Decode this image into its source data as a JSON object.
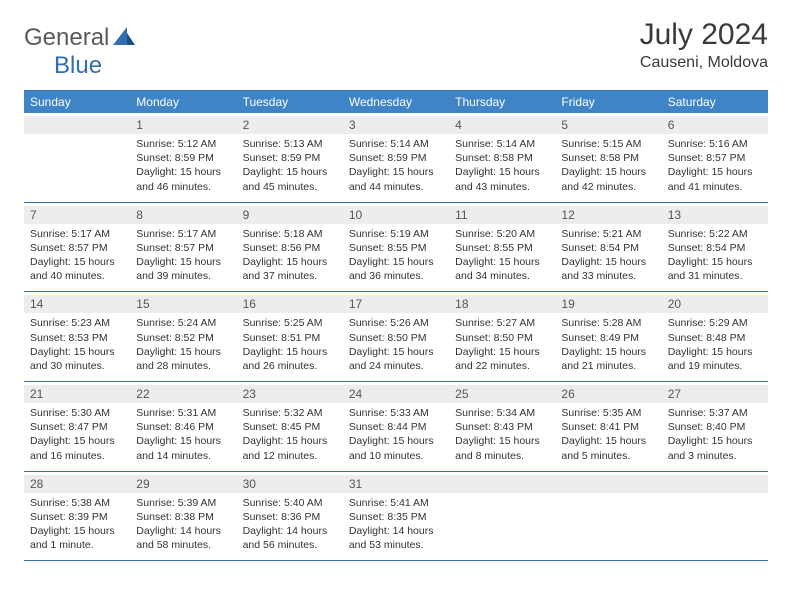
{
  "logo": {
    "part1": "General",
    "part2": "Blue"
  },
  "title": "July 2024",
  "location": "Causeni, Moldova",
  "colors": {
    "header_bg": "#3e84c6",
    "header_text": "#ffffff",
    "border": "#3b6fa8",
    "daynum_bg": "#ededed",
    "logo_gray": "#5a5a5a",
    "logo_blue": "#2f6fb0"
  },
  "day_names": [
    "Sunday",
    "Monday",
    "Tuesday",
    "Wednesday",
    "Thursday",
    "Friday",
    "Saturday"
  ],
  "weeks": [
    [
      {
        "num": "",
        "sunrise": "",
        "sunset": "",
        "daylight": ""
      },
      {
        "num": "1",
        "sunrise": "Sunrise: 5:12 AM",
        "sunset": "Sunset: 8:59 PM",
        "daylight": "Daylight: 15 hours and 46 minutes."
      },
      {
        "num": "2",
        "sunrise": "Sunrise: 5:13 AM",
        "sunset": "Sunset: 8:59 PM",
        "daylight": "Daylight: 15 hours and 45 minutes."
      },
      {
        "num": "3",
        "sunrise": "Sunrise: 5:14 AM",
        "sunset": "Sunset: 8:59 PM",
        "daylight": "Daylight: 15 hours and 44 minutes."
      },
      {
        "num": "4",
        "sunrise": "Sunrise: 5:14 AM",
        "sunset": "Sunset: 8:58 PM",
        "daylight": "Daylight: 15 hours and 43 minutes."
      },
      {
        "num": "5",
        "sunrise": "Sunrise: 5:15 AM",
        "sunset": "Sunset: 8:58 PM",
        "daylight": "Daylight: 15 hours and 42 minutes."
      },
      {
        "num": "6",
        "sunrise": "Sunrise: 5:16 AM",
        "sunset": "Sunset: 8:57 PM",
        "daylight": "Daylight: 15 hours and 41 minutes."
      }
    ],
    [
      {
        "num": "7",
        "sunrise": "Sunrise: 5:17 AM",
        "sunset": "Sunset: 8:57 PM",
        "daylight": "Daylight: 15 hours and 40 minutes."
      },
      {
        "num": "8",
        "sunrise": "Sunrise: 5:17 AM",
        "sunset": "Sunset: 8:57 PM",
        "daylight": "Daylight: 15 hours and 39 minutes."
      },
      {
        "num": "9",
        "sunrise": "Sunrise: 5:18 AM",
        "sunset": "Sunset: 8:56 PM",
        "daylight": "Daylight: 15 hours and 37 minutes."
      },
      {
        "num": "10",
        "sunrise": "Sunrise: 5:19 AM",
        "sunset": "Sunset: 8:55 PM",
        "daylight": "Daylight: 15 hours and 36 minutes."
      },
      {
        "num": "11",
        "sunrise": "Sunrise: 5:20 AM",
        "sunset": "Sunset: 8:55 PM",
        "daylight": "Daylight: 15 hours and 34 minutes."
      },
      {
        "num": "12",
        "sunrise": "Sunrise: 5:21 AM",
        "sunset": "Sunset: 8:54 PM",
        "daylight": "Daylight: 15 hours and 33 minutes."
      },
      {
        "num": "13",
        "sunrise": "Sunrise: 5:22 AM",
        "sunset": "Sunset: 8:54 PM",
        "daylight": "Daylight: 15 hours and 31 minutes."
      }
    ],
    [
      {
        "num": "14",
        "sunrise": "Sunrise: 5:23 AM",
        "sunset": "Sunset: 8:53 PM",
        "daylight": "Daylight: 15 hours and 30 minutes."
      },
      {
        "num": "15",
        "sunrise": "Sunrise: 5:24 AM",
        "sunset": "Sunset: 8:52 PM",
        "daylight": "Daylight: 15 hours and 28 minutes."
      },
      {
        "num": "16",
        "sunrise": "Sunrise: 5:25 AM",
        "sunset": "Sunset: 8:51 PM",
        "daylight": "Daylight: 15 hours and 26 minutes."
      },
      {
        "num": "17",
        "sunrise": "Sunrise: 5:26 AM",
        "sunset": "Sunset: 8:50 PM",
        "daylight": "Daylight: 15 hours and 24 minutes."
      },
      {
        "num": "18",
        "sunrise": "Sunrise: 5:27 AM",
        "sunset": "Sunset: 8:50 PM",
        "daylight": "Daylight: 15 hours and 22 minutes."
      },
      {
        "num": "19",
        "sunrise": "Sunrise: 5:28 AM",
        "sunset": "Sunset: 8:49 PM",
        "daylight": "Daylight: 15 hours and 21 minutes."
      },
      {
        "num": "20",
        "sunrise": "Sunrise: 5:29 AM",
        "sunset": "Sunset: 8:48 PM",
        "daylight": "Daylight: 15 hours and 19 minutes."
      }
    ],
    [
      {
        "num": "21",
        "sunrise": "Sunrise: 5:30 AM",
        "sunset": "Sunset: 8:47 PM",
        "daylight": "Daylight: 15 hours and 16 minutes."
      },
      {
        "num": "22",
        "sunrise": "Sunrise: 5:31 AM",
        "sunset": "Sunset: 8:46 PM",
        "daylight": "Daylight: 15 hours and 14 minutes."
      },
      {
        "num": "23",
        "sunrise": "Sunrise: 5:32 AM",
        "sunset": "Sunset: 8:45 PM",
        "daylight": "Daylight: 15 hours and 12 minutes."
      },
      {
        "num": "24",
        "sunrise": "Sunrise: 5:33 AM",
        "sunset": "Sunset: 8:44 PM",
        "daylight": "Daylight: 15 hours and 10 minutes."
      },
      {
        "num": "25",
        "sunrise": "Sunrise: 5:34 AM",
        "sunset": "Sunset: 8:43 PM",
        "daylight": "Daylight: 15 hours and 8 minutes."
      },
      {
        "num": "26",
        "sunrise": "Sunrise: 5:35 AM",
        "sunset": "Sunset: 8:41 PM",
        "daylight": "Daylight: 15 hours and 5 minutes."
      },
      {
        "num": "27",
        "sunrise": "Sunrise: 5:37 AM",
        "sunset": "Sunset: 8:40 PM",
        "daylight": "Daylight: 15 hours and 3 minutes."
      }
    ],
    [
      {
        "num": "28",
        "sunrise": "Sunrise: 5:38 AM",
        "sunset": "Sunset: 8:39 PM",
        "daylight": "Daylight: 15 hours and 1 minute."
      },
      {
        "num": "29",
        "sunrise": "Sunrise: 5:39 AM",
        "sunset": "Sunset: 8:38 PM",
        "daylight": "Daylight: 14 hours and 58 minutes."
      },
      {
        "num": "30",
        "sunrise": "Sunrise: 5:40 AM",
        "sunset": "Sunset: 8:36 PM",
        "daylight": "Daylight: 14 hours and 56 minutes."
      },
      {
        "num": "31",
        "sunrise": "Sunrise: 5:41 AM",
        "sunset": "Sunset: 8:35 PM",
        "daylight": "Daylight: 14 hours and 53 minutes."
      },
      {
        "num": "",
        "sunrise": "",
        "sunset": "",
        "daylight": ""
      },
      {
        "num": "",
        "sunrise": "",
        "sunset": "",
        "daylight": ""
      },
      {
        "num": "",
        "sunrise": "",
        "sunset": "",
        "daylight": ""
      }
    ]
  ]
}
